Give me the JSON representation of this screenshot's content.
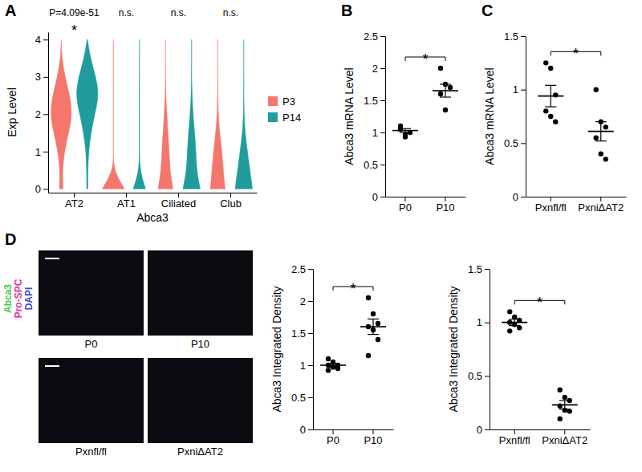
{
  "chart_data": [
    {
      "panel": "A",
      "type": "violin",
      "ylabel": "Exp Level",
      "xlabel": "Abca3",
      "categories": [
        "AT2",
        "AT1",
        "Ciliated",
        "Club"
      ],
      "ylim": [
        -0.1,
        4.2
      ],
      "yticks": [
        0,
        1,
        2,
        3,
        4
      ],
      "density_y": [
        0,
        0.5,
        1,
        1.5,
        2,
        2.5,
        3,
        3.5,
        4
      ],
      "series": [
        {
          "name": "P3",
          "color": "#f4766d",
          "density": [
            [
              0.15,
              0.1,
              0.25,
              0.6,
              0.9,
              0.7,
              0.3,
              0.05,
              0
            ],
            [
              0.9,
              0,
              0,
              0,
              0,
              0,
              0,
              0,
              0
            ],
            [
              0.6,
              0.35,
              0.3,
              0.2,
              0.1,
              0.03,
              0,
              0,
              0
            ],
            [
              0.6,
              0.45,
              0.35,
              0.15,
              0.05,
              0.01,
              0,
              0,
              0
            ]
          ]
        },
        {
          "name": "P14",
          "color": "#1f9c9b",
          "density": [
            [
              0.05,
              0.05,
              0.1,
              0.3,
              0.6,
              0.95,
              0.7,
              0.25,
              0.02
            ],
            [
              0.5,
              0.02,
              0.02,
              0.02,
              0.02,
              0.02,
              0.01,
              0.01,
              0
            ],
            [
              0.7,
              0.4,
              0.35,
              0.25,
              0.12,
              0.04,
              0.01,
              0,
              0
            ],
            [
              0.7,
              0.5,
              0.3,
              0.1,
              0.03,
              0.01,
              0,
              0,
              0
            ]
          ]
        }
      ],
      "annotations": [
        "P=4.09e-51",
        "n.s.",
        "n.s.",
        "n.s."
      ],
      "significance": [
        "*",
        null,
        null,
        null
      ],
      "legend": "right"
    },
    {
      "panel": "B",
      "type": "dot",
      "ylabel": "Abca3 mRNA Level",
      "color": "#000000",
      "categories": [
        "P0",
        "P10"
      ],
      "points": [
        [
          1.05,
          0.97,
          1.0,
          1.1,
          0.93
        ],
        [
          2.0,
          1.75,
          1.7,
          1.6,
          1.35
        ]
      ],
      "means": [
        1.03,
        1.65
      ],
      "errors": [
        0.03,
        0.1
      ],
      "ylim": [
        0,
        2.5
      ],
      "yticks": [
        0,
        0.5,
        1,
        1.5,
        2,
        2.5
      ],
      "significance": "*"
    },
    {
      "panel": "C",
      "type": "dot",
      "ylabel": "Abca3 mRNA Level",
      "color": "#000000",
      "categories": [
        "Pxnfl/fl",
        "PxniΔAT2"
      ],
      "points": [
        [
          1.25,
          1.2,
          0.95,
          0.8,
          0.75,
          0.7
        ],
        [
          1.0,
          0.7,
          0.65,
          0.55,
          0.4,
          0.35
        ]
      ],
      "means": [
        0.94,
        0.61
      ],
      "errors": [
        0.1,
        0.09
      ],
      "ylim": [
        0,
        1.5
      ],
      "yticks": [
        0,
        0.5,
        1,
        1.5
      ],
      "significance": "*"
    },
    {
      "type": "dot",
      "ylabel": "Abca3 Integrated Density",
      "color": "#000000",
      "categories": [
        "P0",
        "P10"
      ],
      "points": [
        [
          1.1,
          1.05,
          1.0,
          1.0,
          0.97,
          0.95,
          0.92
        ],
        [
          2.05,
          1.8,
          1.65,
          1.6,
          1.55,
          1.4,
          1.15
        ]
      ],
      "means": [
        1.0,
        1.6
      ],
      "errors": [
        0.03,
        0.12
      ],
      "ylim": [
        0,
        2.5
      ],
      "yticks": [
        0,
        0.5,
        1,
        1.5,
        2,
        2.5
      ],
      "significance": "*"
    },
    {
      "type": "dot",
      "ylabel": "Abca3 Integrated Density",
      "color": "#000000",
      "categories": [
        "Pxnfl/fl",
        "PxniΔAT2"
      ],
      "points": [
        [
          1.1,
          1.05,
          1.02,
          1.0,
          0.98,
          0.95,
          0.92
        ],
        [
          0.37,
          0.3,
          0.27,
          0.22,
          0.18,
          0.17,
          0.1
        ]
      ],
      "means": [
        1.0,
        0.23
      ],
      "errors": [
        0.03,
        0.04
      ],
      "ylim": [
        0,
        1.5
      ],
      "yticks": [
        0,
        0.5,
        1,
        1.5
      ],
      "significance": "*"
    }
  ],
  "micrographs": {
    "panel": "D",
    "channels": [
      {
        "name": "Abca3",
        "color": "#3fcf4a"
      },
      {
        "name": "Pro-SPC",
        "color": "#e0359a"
      },
      {
        "name": "DAPI",
        "color": "#3a4fd8"
      }
    ],
    "labels": [
      "P0",
      "P10",
      "Pxnfl/fl",
      "PxniΔAT2"
    ]
  }
}
